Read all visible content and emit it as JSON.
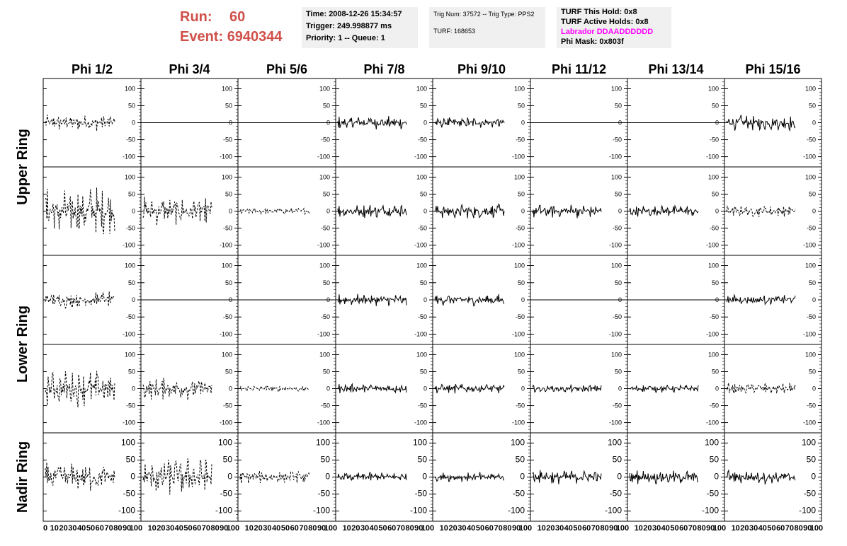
{
  "header": {
    "run_label": "Run:",
    "run_value": "60",
    "event_label": "Event:",
    "event_value": "6940344",
    "time": "Time: 2008-12-26 15:34:57",
    "trigger": "Trigger: 249.998877 ms",
    "priority": "Priority: 1 -- Queue: 1",
    "trig_num": "Trig Num: 37572 -- Trig Type: PPS2",
    "turf": "TURF: 168653",
    "turf_hold": "TURF This Hold: 0x8",
    "turf_active": "TURF Active Holds: 0x8",
    "labrador": "Labrador DDAADDDDDD",
    "phi_mask": "Phi Mask: 0x803f"
  },
  "colors": {
    "accent_red": "#d0504a",
    "magenta": "#ff00ff",
    "panel_bg": "#f0f0f0",
    "trace": "#000000"
  },
  "chart_data": {
    "type": "line",
    "columns": [
      "Phi 1/2",
      "Phi 3/4",
      "Phi 5/6",
      "Phi 7/8",
      "Phi 9/10",
      "Phi 11/12",
      "Phi 13/14",
      "Phi 15/16"
    ],
    "rows": [
      "Upper Ring",
      "Upper Ring",
      "Lower Ring",
      "Lower Ring",
      "Nadir Ring"
    ],
    "row_labels": [
      "Upper Ring",
      "Lower Ring",
      "Nadir Ring"
    ],
    "ylim": [
      -130,
      130
    ],
    "yticks": [
      -100,
      -50,
      0,
      50,
      100
    ],
    "xlim": [
      0,
      100
    ],
    "xticks_text": [
      "0",
      "10",
      "20",
      "30",
      "40",
      "50",
      "60",
      "70",
      "80",
      "90",
      "100"
    ],
    "grid": false,
    "panel_amplitude": [
      [
        25,
        0,
        0,
        20,
        18,
        0,
        0,
        25
      ],
      [
        75,
        45,
        10,
        22,
        22,
        22,
        18,
        18
      ],
      [
        25,
        0,
        0,
        18,
        18,
        0,
        0,
        15
      ],
      [
        55,
        35,
        10,
        15,
        15,
        12,
        12,
        18
      ],
      [
        45,
        60,
        20,
        15,
        15,
        22,
        22,
        22
      ]
    ],
    "panel_style": [
      [
        "dashed",
        "flat",
        "flat",
        "solid",
        "solid",
        "flat",
        "flat",
        "solid"
      ],
      [
        "dashed",
        "dashed",
        "dashed",
        "solid",
        "solid",
        "solid",
        "solid",
        "dashed"
      ],
      [
        "dashed",
        "flat",
        "flat",
        "solid",
        "solid",
        "flat",
        "flat",
        "solid"
      ],
      [
        "dashed",
        "dashed",
        "dashed",
        "solid",
        "solid",
        "solid",
        "solid",
        "dashed"
      ],
      [
        "dashed",
        "dashed",
        "dashed",
        "solid",
        "solid",
        "solid",
        "solid",
        "solid"
      ]
    ]
  }
}
